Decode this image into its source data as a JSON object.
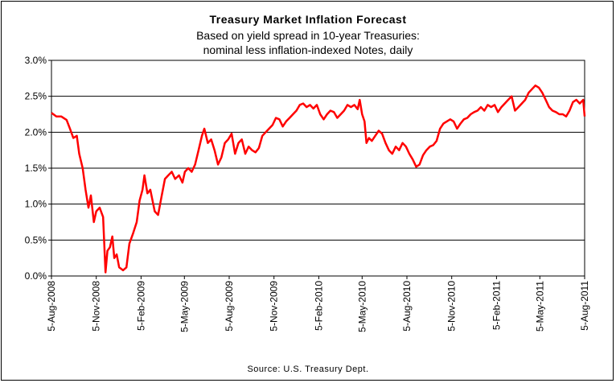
{
  "title": "Treasury Market Inflation Forecast",
  "subtitle_lines": [
    "Based on yield spread in 10-year Treasuries:",
    "nominal less inflation-indexed Notes, daily"
  ],
  "source": "Source: U.S. Treasury Dept.",
  "chart_data": {
    "type": "line",
    "title": "Treasury Market Inflation Forecast",
    "subtitle": "Based on yield spread in 10-year Treasuries: nominal less inflation-indexed Notes, daily",
    "xlabel": "",
    "ylabel": "",
    "x_ticks": [
      "5-Aug-2008",
      "5-Nov-2008",
      "5-Feb-2009",
      "5-May-2009",
      "5-Aug-2009",
      "5-Nov-2009",
      "5-Feb-2010",
      "5-May-2010",
      "5-Aug-2010",
      "5-Nov-2010",
      "5-Feb-2011",
      "5-May-2011",
      "5-Aug-2011"
    ],
    "y_ticks": [
      "0.0%",
      "0.5%",
      "1.0%",
      "1.5%",
      "2.0%",
      "2.5%",
      "3.0%"
    ],
    "ylim": [
      0,
      3.0
    ],
    "y_unit": "%",
    "grid": "horizontal",
    "legend": "none",
    "series": [
      {
        "color": "#ff0000",
        "points": [
          [
            "2008-08-05",
            2.27
          ],
          [
            "2008-08-15",
            2.22
          ],
          [
            "2008-08-25",
            2.22
          ],
          [
            "2008-09-05",
            2.17
          ],
          [
            "2008-09-12",
            2.05
          ],
          [
            "2008-09-19",
            1.92
          ],
          [
            "2008-09-26",
            1.95
          ],
          [
            "2008-10-01",
            1.7
          ],
          [
            "2008-10-08",
            1.5
          ],
          [
            "2008-10-14",
            1.2
          ],
          [
            "2008-10-20",
            0.95
          ],
          [
            "2008-10-25",
            1.12
          ],
          [
            "2008-10-31",
            0.75
          ],
          [
            "2008-11-05",
            0.9
          ],
          [
            "2008-11-12",
            0.95
          ],
          [
            "2008-11-19",
            0.82
          ],
          [
            "2008-11-24",
            0.05
          ],
          [
            "2008-11-28",
            0.35
          ],
          [
            "2008-12-03",
            0.4
          ],
          [
            "2008-12-08",
            0.55
          ],
          [
            "2008-12-12",
            0.25
          ],
          [
            "2008-12-17",
            0.3
          ],
          [
            "2008-12-22",
            0.12
          ],
          [
            "2008-12-30",
            0.08
          ],
          [
            "2009-01-06",
            0.12
          ],
          [
            "2009-01-12",
            0.45
          ],
          [
            "2009-01-20",
            0.6
          ],
          [
            "2009-01-27",
            0.75
          ],
          [
            "2009-02-02",
            1.05
          ],
          [
            "2009-02-08",
            1.2
          ],
          [
            "2009-02-12",
            1.4
          ],
          [
            "2009-02-18",
            1.15
          ],
          [
            "2009-02-24",
            1.2
          ],
          [
            "2009-03-05",
            0.9
          ],
          [
            "2009-03-12",
            0.85
          ],
          [
            "2009-03-19",
            1.1
          ],
          [
            "2009-03-26",
            1.35
          ],
          [
            "2009-04-02",
            1.4
          ],
          [
            "2009-04-09",
            1.45
          ],
          [
            "2009-04-16",
            1.35
          ],
          [
            "2009-04-24",
            1.4
          ],
          [
            "2009-05-01",
            1.3
          ],
          [
            "2009-05-06",
            1.45
          ],
          [
            "2009-05-13",
            1.5
          ],
          [
            "2009-05-20",
            1.45
          ],
          [
            "2009-05-27",
            1.55
          ],
          [
            "2009-06-03",
            1.75
          ],
          [
            "2009-06-10",
            1.95
          ],
          [
            "2009-06-15",
            2.05
          ],
          [
            "2009-06-22",
            1.85
          ],
          [
            "2009-06-29",
            1.9
          ],
          [
            "2009-07-06",
            1.75
          ],
          [
            "2009-07-13",
            1.55
          ],
          [
            "2009-07-20",
            1.65
          ],
          [
            "2009-07-27",
            1.85
          ],
          [
            "2009-08-03",
            1.9
          ],
          [
            "2009-08-10",
            1.98
          ],
          [
            "2009-08-17",
            1.7
          ],
          [
            "2009-08-24",
            1.85
          ],
          [
            "2009-08-31",
            1.9
          ],
          [
            "2009-09-07",
            1.7
          ],
          [
            "2009-09-14",
            1.8
          ],
          [
            "2009-09-21",
            1.75
          ],
          [
            "2009-09-28",
            1.72
          ],
          [
            "2009-10-05",
            1.78
          ],
          [
            "2009-10-12",
            1.95
          ],
          [
            "2009-10-19",
            2.0
          ],
          [
            "2009-10-26",
            2.05
          ],
          [
            "2009-11-02",
            2.1
          ],
          [
            "2009-11-09",
            2.2
          ],
          [
            "2009-11-16",
            2.18
          ],
          [
            "2009-11-23",
            2.08
          ],
          [
            "2009-11-30",
            2.15
          ],
          [
            "2009-12-07",
            2.2
          ],
          [
            "2009-12-14",
            2.25
          ],
          [
            "2009-12-21",
            2.3
          ],
          [
            "2009-12-28",
            2.38
          ],
          [
            "2010-01-04",
            2.4
          ],
          [
            "2010-01-11",
            2.35
          ],
          [
            "2010-01-18",
            2.38
          ],
          [
            "2010-01-25",
            2.33
          ],
          [
            "2010-02-01",
            2.38
          ],
          [
            "2010-02-08",
            2.25
          ],
          [
            "2010-02-15",
            2.18
          ],
          [
            "2010-02-22",
            2.25
          ],
          [
            "2010-03-01",
            2.3
          ],
          [
            "2010-03-08",
            2.28
          ],
          [
            "2010-03-15",
            2.2
          ],
          [
            "2010-03-22",
            2.25
          ],
          [
            "2010-03-29",
            2.3
          ],
          [
            "2010-04-05",
            2.38
          ],
          [
            "2010-04-12",
            2.35
          ],
          [
            "2010-04-19",
            2.38
          ],
          [
            "2010-04-26",
            2.32
          ],
          [
            "2010-04-30",
            2.45
          ],
          [
            "2010-05-05",
            2.25
          ],
          [
            "2010-05-10",
            2.15
          ],
          [
            "2010-05-14",
            1.85
          ],
          [
            "2010-05-19",
            1.92
          ],
          [
            "2010-05-25",
            1.88
          ],
          [
            "2010-06-01",
            1.95
          ],
          [
            "2010-06-08",
            2.02
          ],
          [
            "2010-06-15",
            1.98
          ],
          [
            "2010-06-22",
            1.85
          ],
          [
            "2010-06-29",
            1.75
          ],
          [
            "2010-07-06",
            1.7
          ],
          [
            "2010-07-13",
            1.8
          ],
          [
            "2010-07-20",
            1.75
          ],
          [
            "2010-07-27",
            1.85
          ],
          [
            "2010-08-03",
            1.8
          ],
          [
            "2010-08-10",
            1.7
          ],
          [
            "2010-08-17",
            1.62
          ],
          [
            "2010-08-24",
            1.52
          ],
          [
            "2010-08-31",
            1.55
          ],
          [
            "2010-09-07",
            1.68
          ],
          [
            "2010-09-14",
            1.75
          ],
          [
            "2010-09-21",
            1.8
          ],
          [
            "2010-09-28",
            1.82
          ],
          [
            "2010-10-05",
            1.88
          ],
          [
            "2010-10-12",
            2.05
          ],
          [
            "2010-10-19",
            2.12
          ],
          [
            "2010-10-26",
            2.15
          ],
          [
            "2010-11-02",
            2.18
          ],
          [
            "2010-11-09",
            2.15
          ],
          [
            "2010-11-16",
            2.05
          ],
          [
            "2010-11-23",
            2.12
          ],
          [
            "2010-11-30",
            2.18
          ],
          [
            "2010-12-07",
            2.2
          ],
          [
            "2010-12-14",
            2.25
          ],
          [
            "2010-12-21",
            2.28
          ],
          [
            "2010-12-28",
            2.3
          ],
          [
            "2011-01-04",
            2.35
          ],
          [
            "2011-01-11",
            2.3
          ],
          [
            "2011-01-18",
            2.38
          ],
          [
            "2011-01-25",
            2.35
          ],
          [
            "2011-02-01",
            2.38
          ],
          [
            "2011-02-08",
            2.28
          ],
          [
            "2011-02-15",
            2.35
          ],
          [
            "2011-02-22",
            2.4
          ],
          [
            "2011-03-01",
            2.45
          ],
          [
            "2011-03-08",
            2.5
          ],
          [
            "2011-03-15",
            2.3
          ],
          [
            "2011-03-22",
            2.35
          ],
          [
            "2011-03-29",
            2.4
          ],
          [
            "2011-04-05",
            2.45
          ],
          [
            "2011-04-12",
            2.55
          ],
          [
            "2011-04-19",
            2.6
          ],
          [
            "2011-04-26",
            2.65
          ],
          [
            "2011-05-03",
            2.62
          ],
          [
            "2011-05-10",
            2.55
          ],
          [
            "2011-05-17",
            2.45
          ],
          [
            "2011-05-24",
            2.35
          ],
          [
            "2011-05-31",
            2.3
          ],
          [
            "2011-06-07",
            2.28
          ],
          [
            "2011-06-14",
            2.25
          ],
          [
            "2011-06-21",
            2.25
          ],
          [
            "2011-06-28",
            2.22
          ],
          [
            "2011-07-05",
            2.3
          ],
          [
            "2011-07-12",
            2.42
          ],
          [
            "2011-07-19",
            2.45
          ],
          [
            "2011-07-26",
            2.4
          ],
          [
            "2011-08-02",
            2.45
          ],
          [
            "2011-08-05",
            2.22
          ]
        ]
      }
    ]
  }
}
